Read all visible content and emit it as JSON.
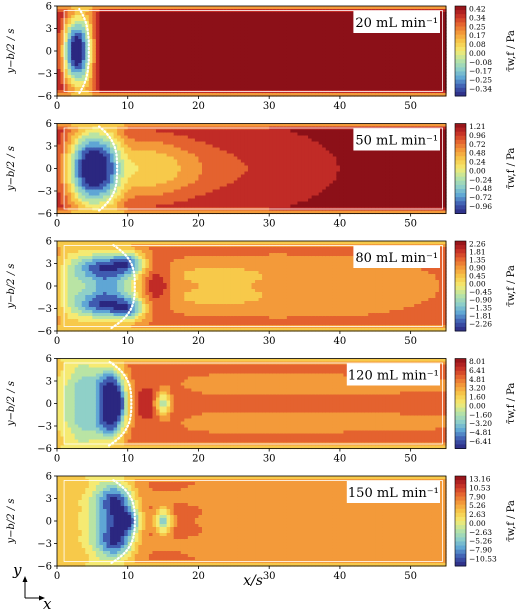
{
  "chart_data": {
    "type": "heatmap",
    "xlabel": "x/s",
    "ylabel": "y−b/2 / s",
    "colorbar_label": "τ̄w,f / Pa",
    "xlim": [
      0,
      55
    ],
    "ylim": [
      -6,
      6
    ],
    "x_ticks": [
      "0",
      "10",
      "20",
      "30",
      "40",
      "50"
    ],
    "y_ticks": [
      "−6",
      "−3",
      "0",
      "3",
      "6"
    ],
    "axes_glyph": {
      "vertical": "y",
      "horizontal": "x"
    },
    "panels": [
      {
        "annotation": "20 mL min⁻¹",
        "colorbar_ticks": [
          "0.42",
          "0.34",
          "0.25",
          "0.17",
          "0.08",
          "0.00",
          "−0.08",
          "−0.17",
          "−0.25",
          "−0.34"
        ],
        "vmin": -0.42,
        "vmax": 0.42,
        "background": 0.4,
        "boundary_x": 4.5,
        "blobs": [
          {
            "x": 2.5,
            "y": 0,
            "sx": 1.2,
            "sy": 3.2,
            "a": -0.82
          },
          {
            "x": 4.2,
            "y": 0,
            "sx": 1.0,
            "sy": 5.5,
            "a": -0.3
          },
          {
            "x": 6.5,
            "y": 0,
            "sx": 1.5,
            "sy": 5.0,
            "a": 0.04
          }
        ]
      },
      {
        "annotation": "50 mL min⁻¹",
        "colorbar_ticks": [
          "1.21",
          "0.96",
          "0.72",
          "0.48",
          "0.24",
          "0.00",
          "−0.24",
          "−0.48",
          "−0.72",
          "−0.96"
        ],
        "vmin": -1.21,
        "vmax": 1.21,
        "background": 1.12,
        "boundary_x": 8.5,
        "blobs": [
          {
            "x": 4.5,
            "y": 0,
            "sx": 2.2,
            "sy": 3.8,
            "a": -2.2
          },
          {
            "x": 7.5,
            "y": 0,
            "sx": 1.5,
            "sy": 5.5,
            "a": -0.6
          },
          {
            "x": 12,
            "y": 0,
            "sx": 5,
            "sy": 3.2,
            "a": -0.75
          },
          {
            "x": 20,
            "y": 0,
            "sx": 9,
            "sy": 3.0,
            "a": -0.35
          }
        ]
      },
      {
        "annotation": "80 mL min⁻¹",
        "colorbar_ticks": [
          "2.26",
          "1.81",
          "1.35",
          "0.90",
          "0.45",
          "0.00",
          "−0.45",
          "−0.90",
          "−1.35",
          "−1.81",
          "−2.26"
        ],
        "vmin": -2.26,
        "vmax": 2.26,
        "background": 1.25,
        "boundary_x": 11,
        "blobs": [
          {
            "x": 2,
            "y": 0,
            "sx": 1.8,
            "sy": 4.5,
            "a": -1.3
          },
          {
            "x": 6,
            "y": 2.5,
            "sx": 2.2,
            "sy": 1.4,
            "a": -2.8
          },
          {
            "x": 6,
            "y": -2.5,
            "sx": 2.2,
            "sy": 1.4,
            "a": -2.8
          },
          {
            "x": 10,
            "y": 3,
            "sx": 1.8,
            "sy": 1.2,
            "a": -2.6
          },
          {
            "x": 10,
            "y": -3,
            "sx": 1.8,
            "sy": 1.2,
            "a": -2.6
          },
          {
            "x": 8,
            "y": 0,
            "sx": 2.5,
            "sy": 1.2,
            "a": -1.6
          },
          {
            "x": 14,
            "y": 0,
            "sx": 1.4,
            "sy": 2.2,
            "a": 1.1
          },
          {
            "x": 22,
            "y": 1.6,
            "sx": 7,
            "sy": 1.2,
            "a": -0.6
          },
          {
            "x": 22,
            "y": -1.6,
            "sx": 7,
            "sy": 1.2,
            "a": -0.6
          },
          {
            "x": 38,
            "y": 0,
            "sx": 12,
            "sy": 3,
            "a": -0.3
          }
        ]
      },
      {
        "annotation": "120 mL min⁻¹",
        "colorbar_ticks": [
          "8.01",
          "6.41",
          "4.81",
          "3.20",
          "1.60",
          "0.00",
          "−1.60",
          "−3.20",
          "−4.81",
          "−6.41"
        ],
        "vmin": -8.01,
        "vmax": 8.01,
        "background": 4.3,
        "boundary_x": 10.5,
        "blobs": [
          {
            "x": 1.5,
            "y": 0,
            "sx": 2.5,
            "sy": 6,
            "a": -4.3
          },
          {
            "x": 4,
            "y": 0,
            "sx": 1.5,
            "sy": 6,
            "a": -4.5
          },
          {
            "x": 7.5,
            "y": 2.5,
            "sx": 1.5,
            "sy": 2,
            "a": -10
          },
          {
            "x": 7.5,
            "y": -2.5,
            "sx": 1.5,
            "sy": 2,
            "a": -10
          },
          {
            "x": 8.5,
            "y": 0,
            "sx": 1.2,
            "sy": 1.5,
            "a": -8
          },
          {
            "x": 11,
            "y": 0,
            "sx": 2,
            "sy": 5,
            "a": 1.0
          },
          {
            "x": 15,
            "y": 0,
            "sx": 0.9,
            "sy": 1.2,
            "a": -9
          },
          {
            "x": 14.5,
            "y": 0,
            "sx": 2.5,
            "sy": 2.5,
            "a": 2.8
          },
          {
            "x": 30,
            "y": 2.5,
            "sx": 18,
            "sy": 0.8,
            "a": -1.3
          },
          {
            "x": 30,
            "y": -2.5,
            "sx": 18,
            "sy": 0.8,
            "a": -1.3
          }
        ]
      },
      {
        "annotation": "150 mL min⁻¹",
        "colorbar_ticks": [
          "13.16",
          "10.53",
          "7.90",
          "5.26",
          "2.63",
          "0.00",
          "−2.63",
          "−5.26",
          "−7.90",
          "−10.53"
        ],
        "vmin": -13.16,
        "vmax": 13.16,
        "background": 6.5,
        "boundary_x": 11,
        "blobs": [
          {
            "x": 1.5,
            "y": 0,
            "sx": 3.5,
            "sy": 6,
            "a": -4.5
          },
          {
            "x": 6,
            "y": 0,
            "sx": 1.5,
            "sy": 6,
            "a": -6
          },
          {
            "x": 8.5,
            "y": 2.5,
            "sx": 1.6,
            "sy": 2,
            "a": -16
          },
          {
            "x": 8.5,
            "y": -2.5,
            "sx": 1.6,
            "sy": 2,
            "a": -16
          },
          {
            "x": 10.5,
            "y": 0,
            "sx": 1.2,
            "sy": 1.3,
            "a": -12
          },
          {
            "x": 15,
            "y": 0,
            "sx": 0.9,
            "sy": 1.3,
            "a": -14
          },
          {
            "x": 15,
            "y": 0,
            "sx": 3,
            "sy": 2.5,
            "a": 3
          },
          {
            "x": 30,
            "y": 3,
            "sx": 18,
            "sy": 0.8,
            "a": -1.8
          },
          {
            "x": 30,
            "y": -3,
            "sx": 18,
            "sy": 0.8,
            "a": -1.8
          },
          {
            "x": 35,
            "y": 0,
            "sx": 18,
            "sy": 0.8,
            "a": -1.2
          }
        ]
      }
    ],
    "colormap": [
      "#2b2780",
      "#3f5bb0",
      "#5fa6d5",
      "#8fd0c8",
      "#b9e4a4",
      "#f5ea72",
      "#f7c94a",
      "#f39a3a",
      "#e4622f",
      "#c12b26",
      "#8c1018"
    ]
  }
}
